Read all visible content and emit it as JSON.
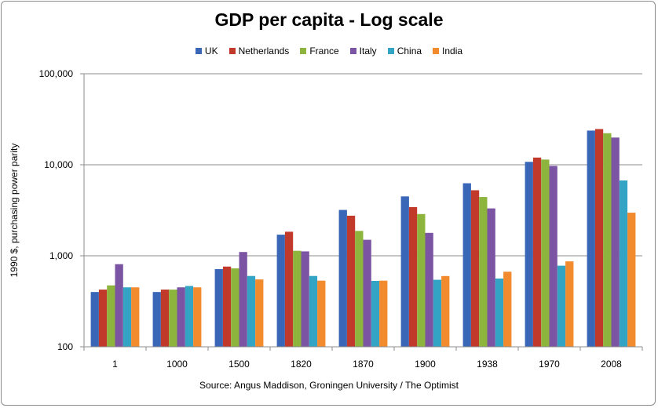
{
  "chart_data": {
    "type": "bar",
    "title": "GDP per capita - Log scale",
    "xlabel": "Source: Angus Maddison, Groningen University / The Optimist",
    "ylabel": "1990 $, purchasing power parity",
    "y_scale": "log",
    "ylim": [
      100,
      100000
    ],
    "y_ticks": [
      100,
      1000,
      10000,
      100000
    ],
    "y_tick_labels": [
      "100",
      "1,000",
      "10,000",
      "100,000"
    ],
    "grid": true,
    "legend_position": "top",
    "categories": [
      "1",
      "1000",
      "1500",
      "1820",
      "1870",
      "1900",
      "1938",
      "1970",
      "2008"
    ],
    "series": [
      {
        "name": "UK",
        "color": "#3a66b8",
        "values": [
          400,
          400,
          714,
          1706,
          3190,
          4492,
          6266,
          10767,
          23742
        ]
      },
      {
        "name": "Netherlands",
        "color": "#c0392b",
        "values": [
          425,
          425,
          761,
          1838,
          2757,
          3424,
          5250,
          12000,
          24695
        ]
      },
      {
        "name": "France",
        "color": "#8db53d",
        "values": [
          473,
          425,
          727,
          1135,
          1876,
          2876,
          4424,
          11410,
          22223
        ]
      },
      {
        "name": "Italy",
        "color": "#7b54a3",
        "values": [
          809,
          450,
          1100,
          1117,
          1499,
          1785,
          3316,
          9719,
          19909
        ]
      },
      {
        "name": "China",
        "color": "#34a4c5",
        "values": [
          450,
          466,
          600,
          600,
          530,
          545,
          562,
          778,
          6725
        ]
      },
      {
        "name": "India",
        "color": "#f28a2e",
        "values": [
          450,
          450,
          550,
          533,
          533,
          599,
          668,
          868,
          2975
        ]
      }
    ]
  }
}
